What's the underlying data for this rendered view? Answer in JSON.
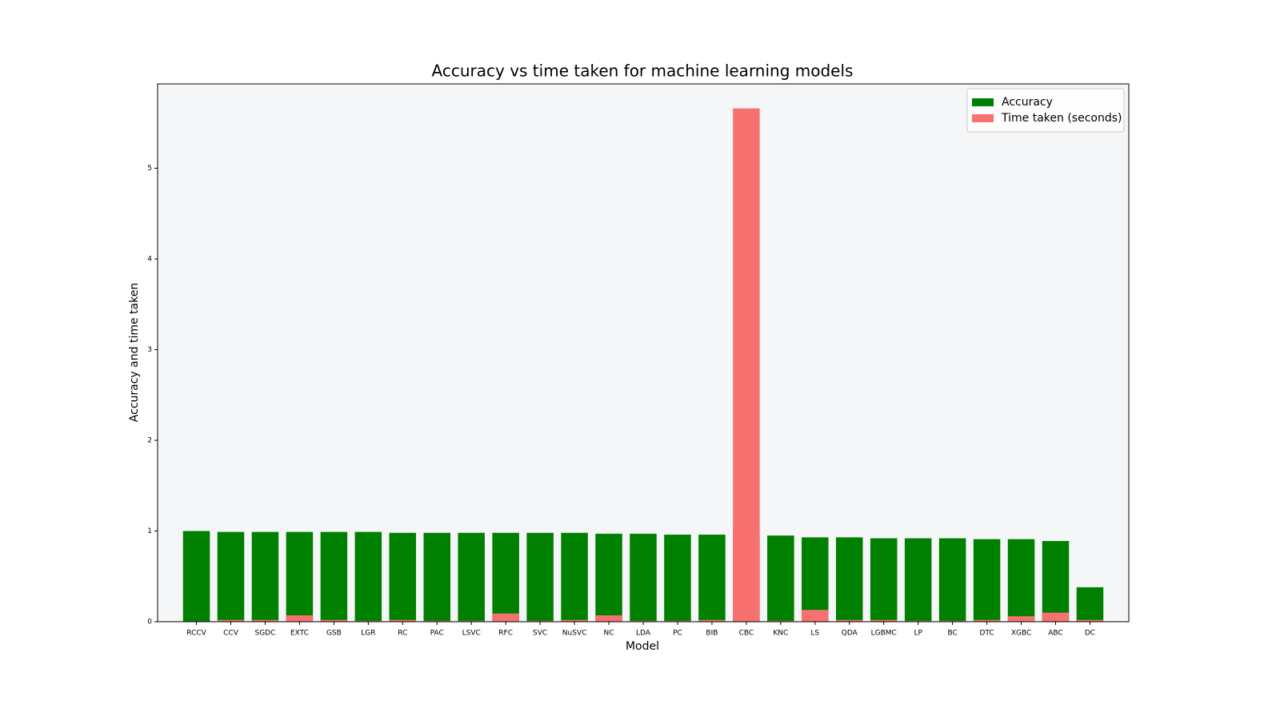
{
  "chart_data": {
    "type": "bar",
    "title": "Accuracy vs time taken for machine learning models",
    "x_label": "Model",
    "y_label": "Accuracy and time taken",
    "categories": [
      "RCCV",
      "CCV",
      "SGDC",
      "EXTC",
      "GSB",
      "LGR",
      "RC",
      "PAC",
      "LSVC",
      "RFC",
      "SVC",
      "NuSVC",
      "NC",
      "LDA",
      "PC",
      "BIB",
      "CBC",
      "KNC",
      "LS",
      "QDA",
      "LGBMC",
      "LP",
      "BC",
      "DTC",
      "XGBC",
      "ABC",
      "DC"
    ],
    "series": [
      {
        "name": "Accuracy",
        "color": "#008000",
        "values": [
          1.0,
          0.99,
          0.99,
          0.99,
          0.99,
          0.99,
          0.98,
          0.98,
          0.98,
          0.98,
          0.98,
          0.98,
          0.97,
          0.97,
          0.96,
          0.96,
          0.96,
          0.95,
          0.93,
          0.93,
          0.92,
          0.92,
          0.92,
          0.91,
          0.91,
          0.89,
          0.38
        ]
      },
      {
        "name": "Time taken (seconds)",
        "color": "#f87171",
        "values": [
          0.005,
          0.02,
          0.02,
          0.07,
          0.02,
          0.01,
          0.02,
          0.01,
          0.01,
          0.09,
          0.01,
          0.02,
          0.07,
          0.01,
          0.01,
          0.02,
          5.66,
          0.01,
          0.13,
          0.02,
          0.02,
          0.01,
          0.01,
          0.02,
          0.06,
          0.1,
          0.02
        ]
      }
    ],
    "ylim": [
      0,
      5.93
    ],
    "yticks": [
      0,
      1,
      2,
      3,
      4,
      5
    ],
    "legend": "upper right",
    "background": "#f5f6f8"
  }
}
